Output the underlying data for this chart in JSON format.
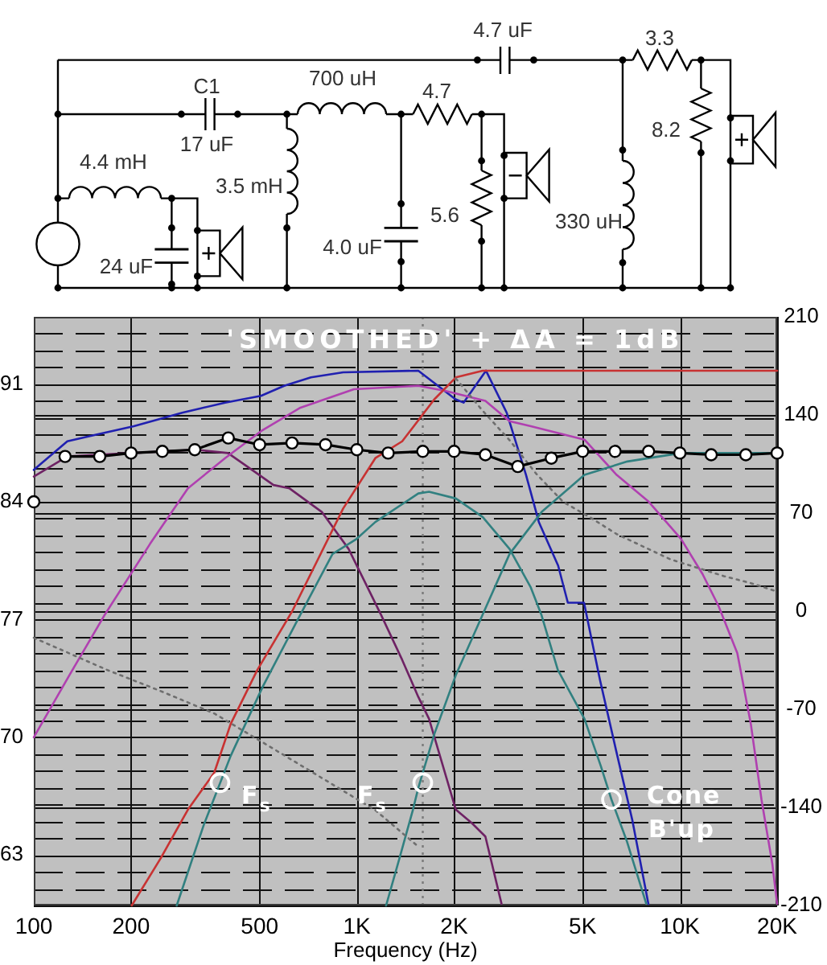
{
  "chart_data": {
    "type": "line",
    "title": "'SMOOTHED' + ΔA = 1dB",
    "xlabel": "Frequency (Hz)",
    "log": "x",
    "xlim": [
      100,
      20000
    ],
    "xticks": [
      100,
      200,
      500,
      {
        "value": 1000,
        "label": "1K"
      },
      {
        "value": 2000,
        "label": "2K"
      },
      {
        "value": 5000,
        "label": "5K"
      },
      {
        "value": 10000,
        "label": "10K"
      },
      {
        "value": 20000,
        "label": "20K"
      }
    ],
    "ylim": [
      60,
      95
    ],
    "yticks": [
      {
        "value": 61,
        "label": null
      },
      {
        "value": 62,
        "label": null
      },
      63,
      {
        "value": 64,
        "label": null
      },
      {
        "value": 65,
        "label": null
      },
      {
        "value": 66,
        "label": null
      },
      {
        "value": 67,
        "label": null
      },
      {
        "value": 68,
        "label": null
      },
      {
        "value": 69,
        "label": null
      },
      70,
      {
        "value": 71,
        "label": null
      },
      {
        "value": 72,
        "label": null
      },
      {
        "value": 73,
        "label": null
      },
      {
        "value": 74,
        "label": null
      },
      {
        "value": 75,
        "label": null
      },
      {
        "value": 76,
        "label": null
      },
      77,
      {
        "value": 78,
        "label": null
      },
      {
        "value": 79,
        "label": null
      },
      {
        "value": 80,
        "label": null
      },
      {
        "value": 81,
        "label": null
      },
      {
        "value": 82,
        "label": null
      },
      {
        "value": 83,
        "label": null
      },
      84,
      {
        "value": 85,
        "label": null
      },
      {
        "value": 86,
        "label": null
      },
      {
        "value": 87,
        "label": null
      },
      {
        "value": 88,
        "label": null
      },
      {
        "value": 89,
        "label": null
      },
      {
        "value": 90,
        "label": null
      },
      91,
      {
        "value": 92,
        "label": null
      },
      {
        "value": 93,
        "label": null
      },
      {
        "value": 94,
        "label": null
      }
    ],
    "y2lim": [
      -210,
      210
    ],
    "y2ticks": [
      -210,
      -140,
      -70,
      0,
      70,
      140,
      210
    ],
    "grid": true,
    "legend": false,
    "series": [
      {
        "color": "#2020b0",
        "x": [
          100,
          127,
          156,
          204,
          288,
          391,
          505,
          596,
          721,
          907,
          1550,
          2020,
          2140,
          2510,
          2910,
          3340,
          3660,
          4200,
          4500,
          5050,
          5660,
          6350,
          7120,
          7990
        ],
        "values": [
          85.9,
          87.6,
          88.0,
          88.5,
          89.3,
          89.9,
          90.3,
          90.9,
          91.4,
          91.7,
          91.8,
          90.1,
          89.9,
          91.8,
          89.3,
          85.6,
          82.8,
          80.2,
          78.0,
          78.0,
          73.4,
          69.2,
          65.1,
          60.1
        ]
      },
      {
        "color": "#6e2264",
        "x": [
          100,
          127,
          201,
          317,
          399,
          474,
          552,
          619,
          779,
          943,
          1187,
          1382,
          1550,
          1673,
          2025,
          2270,
          2500,
          2805
        ],
        "values": [
          85.5,
          86.7,
          86.9,
          87.1,
          86.9,
          85.9,
          85.0,
          84.8,
          83.4,
          81.2,
          77.3,
          74.6,
          72.4,
          71.1,
          65.7,
          64.9,
          64.1,
          60.1
        ]
      },
      {
        "color": "#b040b0",
        "x": [
          100,
          129,
          166,
          229,
          300,
          391,
          505,
          669,
          980,
          1550,
          1876,
          2500,
          2970,
          3457,
          5065,
          6373,
          8015,
          10080,
          11760,
          13180,
          15060,
          16580,
          17890,
          19320,
          20000
        ],
        "values": [
          70.0,
          73.7,
          77.3,
          81.5,
          84.8,
          86.6,
          88.2,
          89.6,
          90.7,
          90.9,
          90.6,
          90.0,
          88.8,
          88.5,
          87.7,
          85.6,
          84.0,
          81.8,
          79.7,
          77.8,
          75.0,
          70.8,
          66.3,
          62.5,
          60.1
        ]
      },
      {
        "color": "#c83232",
        "x": [
          201,
          247,
          300,
          362,
          407,
          492,
          631,
          907,
          1141,
          1382,
          1738,
          2025,
          2452,
          20000
        ],
        "values": [
          60.0,
          62.8,
          65.7,
          67.9,
          70.8,
          74.0,
          77.5,
          83.6,
          86.6,
          87.6,
          90.1,
          91.4,
          91.8,
          91.8
        ]
      },
      {
        "color": "#318080",
        "x": [
          277,
          336,
          407,
          511,
          669,
          841,
          999,
          1141,
          1550,
          1673,
          2025,
          2452,
          2970,
          3457,
          3724,
          4190,
          5065,
          5690,
          6140,
          6860,
          7870
        ],
        "values": [
          60.0,
          64.8,
          68.9,
          73.0,
          77.3,
          80.9,
          81.8,
          82.8,
          84.5,
          84.6,
          84.2,
          83.1,
          81.2,
          78.9,
          77.3,
          74.0,
          71.1,
          68.3,
          66.3,
          63.8,
          60.1
        ]
      },
      {
        "color": "#318080",
        "x": [
          1232,
          1355,
          1492,
          1550,
          1738,
          2025,
          2452,
          2970,
          3734,
          5065,
          6880,
          10080,
          20000
        ],
        "values": [
          60.0,
          62.8,
          65.7,
          67.0,
          70.2,
          73.7,
          77.3,
          80.9,
          83.4,
          85.6,
          86.4,
          86.9,
          86.9
        ]
      },
      {
        "color": "#6e6e6e",
        "axis": "y2",
        "line_style": "dotted",
        "x": [
          100,
          169,
          247,
          362,
          532,
          779,
          1141,
          1550
        ],
        "values": [
          -19,
          -42,
          -57,
          -73,
          -96,
          -119,
          -142,
          -168
        ]
      },
      {
        "color": "#6e6e6e",
        "axis": "y2",
        "line_style": "dotted",
        "x": [
          2025,
          2452,
          2970,
          3593,
          4350,
          5267,
          6373,
          7717,
          9346,
          11310,
          13690,
          16580,
          20000
        ],
        "values": [
          166,
          143,
          122,
          98,
          78,
          67,
          55,
          46,
          37,
          31,
          25,
          20,
          14
        ]
      },
      {
        "color": "#000000",
        "marker": "circle",
        "x": [
          125,
          160,
          200,
          250,
          315,
          400,
          500,
          630,
          800,
          1000,
          1250,
          1600,
          2000,
          2500,
          3150,
          4000,
          5000,
          6300,
          8000,
          10000,
          12500,
          16000,
          20000
        ],
        "values": [
          86.7,
          86.7,
          86.9,
          87.0,
          87.1,
          87.8,
          87.4,
          87.5,
          87.4,
          87.1,
          86.9,
          87.0,
          87.0,
          86.8,
          86.1,
          86.6,
          87.0,
          87.0,
          87.0,
          86.9,
          86.8,
          86.8,
          86.9
        ]
      },
      {
        "color": "#000000",
        "marker": "circle",
        "x": [
          100
        ],
        "values": [
          84.0
        ]
      },
      {
        "type": "scatter",
        "color": "#ffffff",
        "marker": "circle",
        "x": [
          377,
          1600,
          6140
        ],
        "values": [
          67.3,
          67.3,
          66.3
        ]
      }
    ],
    "ref_lines": [
      {
        "axis": "x",
        "value": 1600,
        "color": "#7a7a7a",
        "line_style": "dotted"
      }
    ],
    "annotations": [
      "4.7 uF",
      "3.3",
      "700 uH",
      "C1",
      "4.7",
      "8.2",
      "17 uF",
      "4.4 mH",
      "3.5 mH",
      "5.6",
      "330 uH",
      "4.0 uF",
      "24 uF",
      "F$_{s}$",
      "F$_{s}$",
      "Cone",
      "B'up"
    ]
  }
}
